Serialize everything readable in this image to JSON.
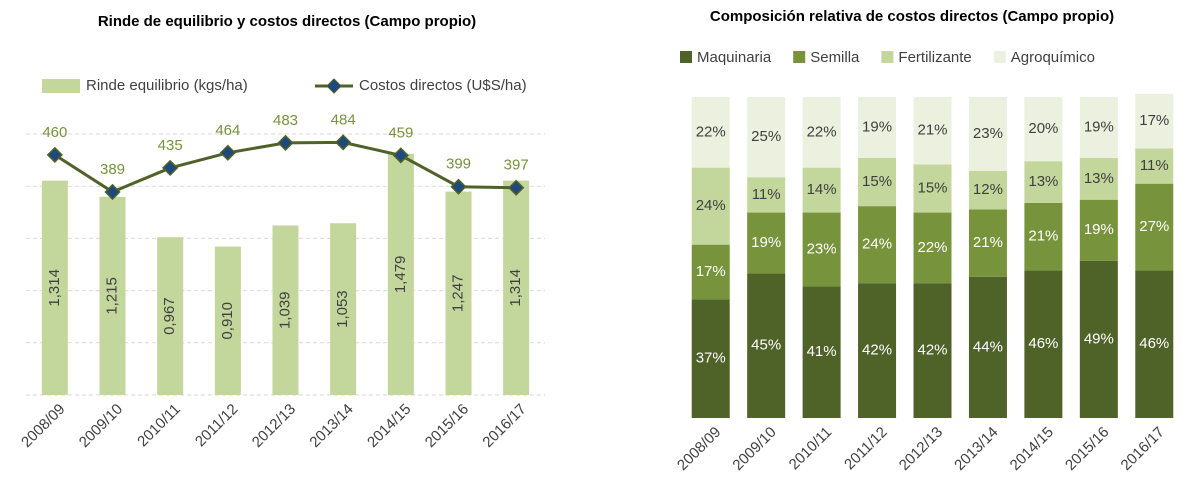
{
  "chart_data": [
    {
      "type": "combo",
      "title": "Rinde de equilibrio y costos directos (Campo propio)",
      "categories": [
        "2008/09",
        "2009/10",
        "2010/11",
        "2011/12",
        "2012/13",
        "2013/14",
        "2014/15",
        "2015/16",
        "2016/17"
      ],
      "series": [
        {
          "name": "Rinde equilibrio (kgs/ha)",
          "type": "bar",
          "color": "#c3d69b",
          "values": [
            1.314,
            1.215,
            0.967,
            0.91,
            1.039,
            1.053,
            1.479,
            1.247,
            1.314
          ],
          "value_labels": [
            "1,314",
            "1,215",
            "0,967",
            "0,910",
            "1,039",
            "1,053",
            "1,479",
            "1,247",
            "1,314"
          ]
        },
        {
          "name": "Costos directos (U$S/ha)",
          "type": "line",
          "axis": "y2",
          "color": "#4f6228",
          "marker_color": "#1f497d",
          "values": [
            460,
            389,
            435,
            464,
            483,
            484,
            459,
            399,
            397
          ]
        }
      ],
      "ylim": [
        0,
        1.6
      ],
      "y2lim": [
        0,
        500
      ],
      "y2ticks": [
        0,
        100,
        200,
        300,
        400,
        500
      ],
      "grid": true
    },
    {
      "type": "stacked_bar",
      "title": "Composición relativa de costos directos (Campo propio)",
      "categories": [
        "2008/09",
        "2009/10",
        "2010/11",
        "2011/12",
        "2012/13",
        "2013/14",
        "2014/15",
        "2015/16",
        "2016/17"
      ],
      "series": [
        {
          "name": "Maquinaria",
          "color": "#4f6228",
          "label_color": "#ffffff",
          "values": [
            37,
            45,
            41,
            42,
            42,
            44,
            46,
            49,
            46
          ],
          "value_labels": [
            "37%",
            "45%",
            "41%",
            "42%",
            "42%",
            "44%",
            "46%",
            "49%",
            "46%"
          ]
        },
        {
          "name": "Semilla",
          "color": "#77933c",
          "label_color": "#ffffff",
          "values": [
            17,
            19,
            23,
            24,
            22,
            21,
            21,
            19,
            27
          ],
          "value_labels": [
            "17%",
            "19%",
            "23%",
            "24%",
            "22%",
            "21%",
            "21%",
            "19%",
            "27%"
          ]
        },
        {
          "name": "Fertilizante",
          "color": "#c3d69b",
          "label_color": "#404040",
          "values": [
            24,
            11,
            14,
            15,
            15,
            12,
            13,
            13,
            11
          ],
          "value_labels": [
            "24%",
            "11%",
            "14%",
            "15%",
            "15%",
            "12%",
            "13%",
            "13%",
            "11%"
          ]
        },
        {
          "name": "Agroquímico",
          "color": "#ebf1de",
          "label_color": "#404040",
          "values": [
            22,
            25,
            22,
            19,
            21,
            23,
            20,
            19,
            17
          ],
          "value_labels": [
            "22%",
            "25%",
            "22%",
            "19%",
            "21%",
            "23%",
            "20%",
            "19%",
            "17%"
          ]
        }
      ],
      "ylim": [
        0,
        100
      ]
    }
  ]
}
